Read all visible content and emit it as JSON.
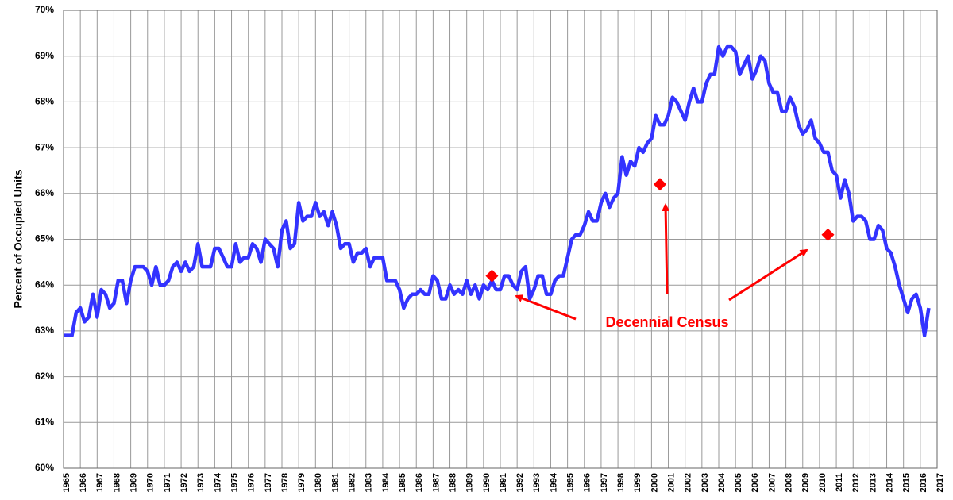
{
  "chart_data": {
    "type": "line",
    "y_label": "Percent of Occupied Units",
    "annotation": "Decennial Census",
    "xlim": [
      1965,
      2017
    ],
    "xticks": [
      1965,
      1966,
      1967,
      1968,
      1969,
      1970,
      1971,
      1972,
      1973,
      1974,
      1975,
      1976,
      1977,
      1978,
      1979,
      1980,
      1981,
      1982,
      1983,
      1984,
      1985,
      1986,
      1987,
      1988,
      1989,
      1990,
      1991,
      1992,
      1993,
      1994,
      1995,
      1996,
      1997,
      1998,
      1999,
      2000,
      2001,
      2002,
      2003,
      2004,
      2005,
      2006,
      2007,
      2008,
      2009,
      2010,
      2011,
      2012,
      2013,
      2014,
      2015,
      2016,
      2017
    ],
    "ylim": [
      60,
      70
    ],
    "yticks": [
      {
        "value": 60,
        "label": "60%"
      },
      {
        "value": 61,
        "label": "61%"
      },
      {
        "value": 62,
        "label": "62%"
      },
      {
        "value": 63,
        "label": "63%"
      },
      {
        "value": 64,
        "label": "64%"
      },
      {
        "value": 65,
        "label": "65%"
      },
      {
        "value": 66,
        "label": "66%"
      },
      {
        "value": 67,
        "label": "67%"
      },
      {
        "value": 68,
        "label": "68%"
      },
      {
        "value": 69,
        "label": "69%"
      },
      {
        "value": 70,
        "label": "70%"
      }
    ],
    "grid": true,
    "series": [
      {
        "style": "line",
        "color": "#3333ff",
        "x": [
          1965,
          1965.25,
          1965.5,
          1965.75,
          1966,
          1966.25,
          1966.5,
          1966.75,
          1967,
          1967.25,
          1967.5,
          1967.75,
          1968,
          1968.25,
          1968.5,
          1968.75,
          1969,
          1969.25,
          1969.5,
          1969.75,
          1970,
          1970.25,
          1970.5,
          1970.75,
          1971,
          1971.25,
          1971.5,
          1971.75,
          1972,
          1972.25,
          1972.5,
          1972.75,
          1973,
          1973.25,
          1973.5,
          1973.75,
          1974,
          1974.25,
          1974.5,
          1974.75,
          1975,
          1975.25,
          1975.5,
          1975.75,
          1976,
          1976.25,
          1976.5,
          1976.75,
          1977,
          1977.25,
          1977.5,
          1977.75,
          1978,
          1978.25,
          1978.5,
          1978.75,
          1979,
          1979.25,
          1979.5,
          1979.75,
          1980,
          1980.25,
          1980.5,
          1980.75,
          1981,
          1981.25,
          1981.5,
          1981.75,
          1982,
          1982.25,
          1982.5,
          1982.75,
          1983,
          1983.25,
          1983.5,
          1983.75,
          1984,
          1984.25,
          1984.5,
          1984.75,
          1985,
          1985.25,
          1985.5,
          1985.75,
          1986,
          1986.25,
          1986.5,
          1986.75,
          1987,
          1987.25,
          1987.5,
          1987.75,
          1988,
          1988.25,
          1988.5,
          1988.75,
          1989,
          1989.25,
          1989.5,
          1989.75,
          1990,
          1990.25,
          1990.5,
          1990.75,
          1991,
          1991.25,
          1991.5,
          1991.75,
          1992,
          1992.25,
          1992.5,
          1992.75,
          1993,
          1993.25,
          1993.5,
          1993.75,
          1994,
          1994.25,
          1994.5,
          1994.75,
          1995,
          1995.25,
          1995.5,
          1995.75,
          1996,
          1996.25,
          1996.5,
          1996.75,
          1997,
          1997.25,
          1997.5,
          1997.75,
          1998,
          1998.25,
          1998.5,
          1998.75,
          1999,
          1999.25,
          1999.5,
          1999.75,
          2000,
          2000.25,
          2000.5,
          2000.75,
          2001,
          2001.25,
          2001.5,
          2001.75,
          2002,
          2002.25,
          2002.5,
          2002.75,
          2003,
          2003.25,
          2003.5,
          2003.75,
          2004,
          2004.25,
          2004.5,
          2004.75,
          2005,
          2005.25,
          2005.5,
          2005.75,
          2006,
          2006.25,
          2006.5,
          2006.75,
          2007,
          2007.25,
          2007.5,
          2007.75,
          2008,
          2008.25,
          2008.5,
          2008.75,
          2009,
          2009.25,
          2009.5,
          2009.75,
          2010,
          2010.25,
          2010.5,
          2010.75,
          2011,
          2011.25,
          2011.5,
          2011.75,
          2012,
          2012.25,
          2012.5,
          2012.75,
          2013,
          2013.25,
          2013.5,
          2013.75,
          2014,
          2014.25,
          2014.5,
          2014.75,
          2015,
          2015.25,
          2015.5,
          2015.75,
          2016,
          2016.25,
          2016.5
        ],
        "values": [
          62.9,
          62.9,
          62.9,
          63.4,
          63.5,
          63.2,
          63.3,
          63.8,
          63.3,
          63.9,
          63.8,
          63.5,
          63.6,
          64.1,
          64.1,
          63.6,
          64.1,
          64.4,
          64.4,
          64.4,
          64.3,
          64.0,
          64.4,
          64.0,
          64.0,
          64.1,
          64.4,
          64.5,
          64.3,
          64.5,
          64.3,
          64.4,
          64.9,
          64.4,
          64.4,
          64.4,
          64.8,
          64.8,
          64.6,
          64.4,
          64.4,
          64.9,
          64.5,
          64.6,
          64.6,
          64.9,
          64.8,
          64.5,
          65.0,
          64.9,
          64.8,
          64.4,
          65.2,
          65.4,
          64.8,
          64.9,
          65.8,
          65.4,
          65.5,
          65.5,
          65.8,
          65.5,
          65.6,
          65.3,
          65.6,
          65.3,
          64.8,
          64.9,
          64.9,
          64.5,
          64.7,
          64.7,
          64.8,
          64.4,
          64.6,
          64.6,
          64.6,
          64.1,
          64.1,
          64.1,
          63.9,
          63.5,
          63.7,
          63.8,
          63.8,
          63.9,
          63.8,
          63.8,
          64.2,
          64.1,
          63.7,
          63.7,
          64.0,
          63.8,
          63.9,
          63.8,
          64.1,
          63.8,
          64.0,
          63.7,
          64.0,
          63.9,
          64.1,
          63.9,
          63.9,
          64.2,
          64.2,
          64.0,
          63.9,
          64.3,
          64.4,
          63.7,
          63.9,
          64.2,
          64.2,
          63.8,
          63.8,
          64.1,
          64.2,
          64.2,
          64.6,
          65.0,
          65.1,
          65.1,
          65.3,
          65.6,
          65.4,
          65.4,
          65.8,
          66.0,
          65.7,
          65.9,
          66.0,
          66.8,
          66.4,
          66.7,
          66.6,
          67.0,
          66.9,
          67.1,
          67.2,
          67.7,
          67.5,
          67.5,
          67.7,
          68.1,
          68.0,
          67.8,
          67.6,
          68.0,
          68.3,
          68.0,
          68.0,
          68.4,
          68.6,
          68.6,
          69.2,
          69.0,
          69.2,
          69.2,
          69.1,
          68.6,
          68.8,
          69.0,
          68.5,
          68.7,
          69.0,
          68.9,
          68.4,
          68.2,
          68.2,
          67.8,
          67.8,
          68.1,
          67.9,
          67.5,
          67.3,
          67.4,
          67.6,
          67.2,
          67.1,
          66.9,
          66.9,
          66.5,
          66.4,
          65.9,
          66.3,
          66.0,
          65.4,
          65.5,
          65.5,
          65.4,
          65.0,
          65.0,
          65.3,
          65.2,
          64.8,
          64.7,
          64.4,
          64.0,
          63.7,
          63.4,
          63.7,
          63.8,
          63.5,
          62.9,
          63.5
        ]
      },
      {
        "style": "marker",
        "color": "#ff0000",
        "x": [
          1990.5,
          2000.5,
          2010.5
        ],
        "values": [
          64.2,
          66.2,
          65.1
        ]
      }
    ]
  }
}
